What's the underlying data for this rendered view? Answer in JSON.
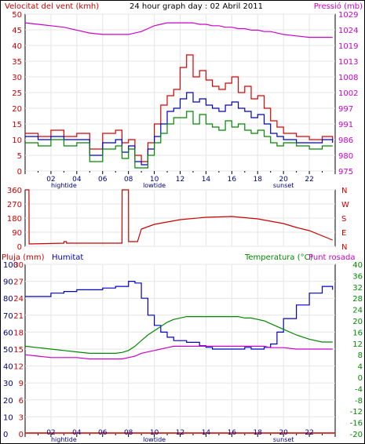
{
  "header": {
    "left_title": "Velocitat del vent (kmh)",
    "center_title": "24 hour graph day : 02 Abril 2011",
    "right_title": "Pressió (mb)",
    "left_color": "#cc0000",
    "right_color": "#cc00cc"
  },
  "x_axis": {
    "hours": [
      "02",
      "04",
      "06",
      "08",
      "10",
      "12",
      "14",
      "16",
      "18",
      "20",
      "22"
    ],
    "events_top": [
      {
        "label": "hightide",
        "hour": 3
      },
      {
        "label": "lowtide",
        "hour": 10
      },
      {
        "label": "sunset",
        "hour": 20
      }
    ],
    "events_bottom": [
      {
        "label": "hightide",
        "hour": 3
      },
      {
        "label": "lowtide",
        "hour": 10
      },
      {
        "label": "sunset",
        "hour": 20
      }
    ]
  },
  "chart_data": [
    {
      "id": "wind",
      "type": "line",
      "title": "24 hour graph day : 02 Abril 2011",
      "ylabel_left": "Velocitat del vent (kmh)",
      "ylabel_right": "Pressió (mb)",
      "ylim_left": [
        0,
        50
      ],
      "yticks_left": [
        "0",
        "5",
        "10",
        "15",
        "20",
        "25",
        "30",
        "35",
        "40",
        "45",
        "50"
      ],
      "ylim_right": [
        975,
        1029
      ],
      "yticks_right": [
        "975",
        "980",
        "986",
        "991",
        "997",
        "1002",
        "1008",
        "1013",
        "1019",
        "1024",
        "1029"
      ],
      "x_hours": [
        0,
        1,
        2,
        3,
        4,
        5,
        6,
        7,
        7.5,
        8,
        8.5,
        9,
        9.5,
        10,
        10.5,
        11,
        11.5,
        12,
        12.5,
        13,
        13.5,
        14,
        14.5,
        15,
        15.5,
        16,
        16.5,
        17,
        17.5,
        18,
        18.5,
        19,
        19.5,
        20,
        21,
        22,
        23,
        23.8
      ],
      "series": [
        {
          "axis": "left",
          "color": "#dd0000",
          "values": [
            12,
            11,
            13,
            11,
            12,
            7,
            12,
            13,
            9,
            10,
            5,
            3,
            9,
            15,
            21,
            24,
            26,
            33,
            37,
            30,
            32,
            29,
            27,
            26,
            28,
            30,
            25,
            27,
            23,
            24,
            20,
            16,
            14,
            12,
            11,
            10,
            11,
            10
          ]
        },
        {
          "axis": "left",
          "color": "#0000cc",
          "values": [
            11,
            10,
            11,
            10,
            10,
            5,
            9,
            10,
            6,
            8,
            3,
            2,
            7,
            11,
            15,
            19,
            20,
            23,
            25,
            22,
            23,
            21,
            20,
            19,
            21,
            22,
            20,
            19,
            17,
            18,
            15,
            12,
            11,
            10,
            9,
            9,
            10,
            9
          ]
        },
        {
          "axis": "left",
          "color": "#008800",
          "values": [
            9,
            8,
            10,
            8,
            9,
            3,
            7,
            8,
            4,
            7,
            1,
            1,
            5,
            9,
            12,
            15,
            17,
            17,
            19,
            15,
            18,
            15,
            14,
            13,
            16,
            14,
            15,
            13,
            12,
            13,
            11,
            9,
            8,
            9,
            8,
            7,
            8,
            8
          ]
        },
        {
          "axis": "right",
          "color": "#cc00cc",
          "values": [
            1026,
            1025.5,
            1025,
            1024.5,
            1023.5,
            1022.5,
            1022,
            1022,
            1022,
            1022,
            1022.5,
            1023,
            1024,
            1025,
            1025.5,
            1026,
            1026,
            1026,
            1026,
            1026,
            1025.5,
            1025.5,
            1025,
            1025,
            1024.5,
            1024.5,
            1024,
            1024,
            1023.5,
            1023.5,
            1023,
            1023,
            1022.5,
            1022,
            1021.5,
            1021,
            1021,
            1021
          ]
        }
      ]
    },
    {
      "id": "direction",
      "type": "line",
      "ylim": [
        0,
        360
      ],
      "yticks_left": [
        "0",
        "90",
        "180",
        "270",
        "360"
      ],
      "yticks_right": [
        "N",
        "E",
        "S",
        "W",
        "N"
      ],
      "x_hours": [
        0,
        0.01,
        0.3,
        0.31,
        3,
        3.01,
        3.2,
        3.21,
        7.5,
        7.51,
        8,
        8.01,
        8.7,
        9,
        10,
        12,
        14,
        16,
        18,
        20,
        21,
        22,
        23.8
      ],
      "series": [
        {
          "color": "#cc0000",
          "values": [
            360,
            360,
            360,
            15,
            20,
            30,
            30,
            20,
            20,
            360,
            360,
            30,
            30,
            110,
            140,
            170,
            185,
            190,
            175,
            145,
            120,
            100,
            40
          ]
        }
      ]
    },
    {
      "id": "thermo",
      "type": "line",
      "header_left": "Pluja (mm)",
      "header_humid": "Humitat",
      "header_temp": "Temperatura (°C)",
      "header_dew": "Punt rosada",
      "rain_labels": [
        "0",
        "3",
        "6",
        "9",
        "12",
        "15",
        "18",
        "21",
        "24",
        "27",
        "30"
      ],
      "humid_labels": [
        "0",
        "10",
        "20",
        "30",
        "40",
        "50",
        "60",
        "70",
        "80",
        "90",
        "100"
      ],
      "temp_labels": [
        "-20",
        "-16",
        "-12",
        "-8",
        "-4",
        "0",
        "4",
        "8",
        "12",
        "16",
        "20",
        "24",
        "28",
        "32",
        "36",
        "40"
      ],
      "ylim_humid": [
        0,
        100
      ],
      "ylim_temp": [
        -20,
        40
      ],
      "x_hours": [
        0,
        1,
        2,
        3,
        4,
        5,
        6,
        7,
        7.5,
        8,
        8.5,
        9,
        9.5,
        10,
        10.5,
        11,
        11.5,
        12,
        12.5,
        13,
        13.5,
        14,
        14.5,
        15,
        15.5,
        16,
        16.5,
        17,
        17.5,
        18,
        18.5,
        19,
        19.5,
        20,
        21,
        22,
        23,
        23.8
      ],
      "series": [
        {
          "name": "Humitat",
          "axis": "humid",
          "color": "#0000cc",
          "values": [
            81,
            81,
            83,
            84,
            85,
            85,
            86,
            87,
            87,
            90,
            89,
            80,
            70,
            64,
            60,
            57,
            55,
            55,
            54,
            54,
            52,
            51,
            50,
            50,
            50,
            50,
            50,
            51,
            50,
            50,
            51,
            53,
            60,
            68,
            76,
            83,
            87,
            85
          ]
        },
        {
          "name": "Temperatura (°C)",
          "axis": "temp",
          "color": "#008800",
          "values": [
            11,
            10.5,
            10,
            9.5,
            9,
            8.5,
            8.5,
            8.5,
            8.8,
            9.5,
            11,
            13,
            15,
            16.5,
            18,
            19.5,
            20.5,
            21,
            21.5,
            21.5,
            21.5,
            21.5,
            21.5,
            21.5,
            21.5,
            21.5,
            21.5,
            21,
            21,
            20.5,
            20,
            19,
            18,
            17,
            15,
            13.5,
            12.5,
            12.5
          ]
        },
        {
          "name": "Punt rosada",
          "axis": "temp",
          "color": "#cc00cc",
          "values": [
            8,
            7.5,
            7,
            7,
            7,
            6.5,
            6.5,
            6.5,
            6.5,
            7,
            7.5,
            8.5,
            9,
            9.5,
            10,
            10.5,
            11,
            11,
            11,
            11,
            11,
            11,
            11,
            11,
            11,
            11,
            11,
            11,
            11,
            11,
            11,
            10.5,
            10.5,
            10.5,
            10,
            10,
            10,
            10
          ]
        },
        {
          "name": "Pluja (mm)",
          "axis": "rain",
          "color": "#cc0000",
          "values": [
            0,
            0
          ]
        }
      ]
    }
  ]
}
